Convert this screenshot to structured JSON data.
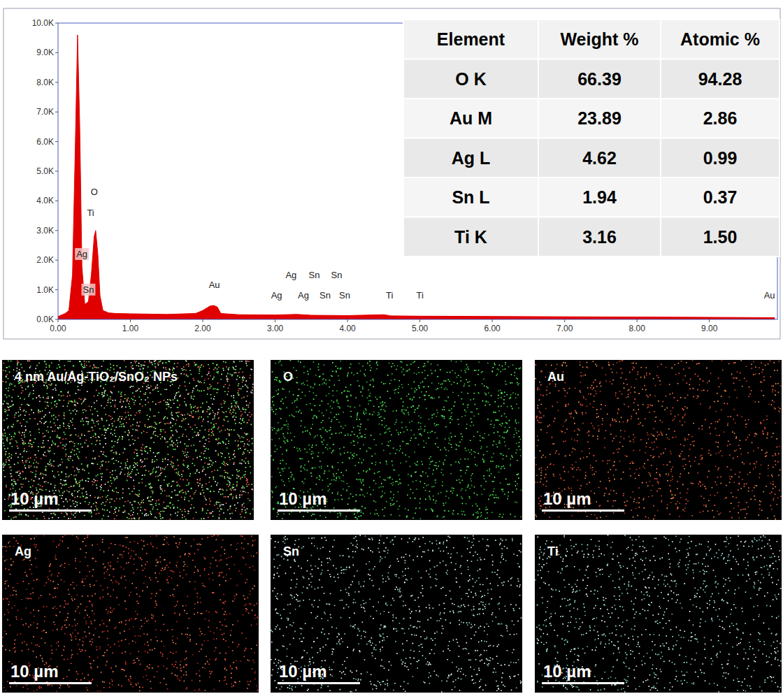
{
  "chart_data": {
    "type": "area",
    "color": "#e00000",
    "x": [
      0.0,
      0.05,
      0.1,
      0.15,
      0.2,
      0.24,
      0.27,
      0.3,
      0.33,
      0.37,
      0.42,
      0.46,
      0.5,
      0.52,
      0.55,
      0.58,
      0.62,
      0.7,
      0.8,
      1.0,
      1.5,
      1.9,
      2.0,
      2.1,
      2.15,
      2.2,
      2.25,
      2.5,
      3.0,
      3.3,
      3.5,
      4.0,
      4.5,
      4.6,
      5.0,
      6.0,
      7.0,
      8.0,
      9.0,
      9.9
    ],
    "values": [
      100,
      150,
      200,
      300,
      1500,
      6000,
      9600,
      6500,
      1800,
      500,
      600,
      1500,
      2800,
      3000,
      2200,
      800,
      300,
      220,
      200,
      190,
      170,
      200,
      300,
      450,
      470,
      420,
      200,
      160,
      150,
      170,
      140,
      130,
      160,
      120,
      110,
      100,
      90,
      80,
      70,
      60
    ],
    "xlim": [
      0,
      9.94
    ],
    "ylim": [
      0,
      10000
    ],
    "xticks": [
      {
        "value": 0,
        "label": "0.00"
      },
      {
        "value": 1,
        "label": "1.00"
      },
      {
        "value": 2,
        "label": "2.00"
      },
      {
        "value": 3,
        "label": "3.00"
      },
      {
        "value": 4,
        "label": "4.00"
      },
      {
        "value": 5,
        "label": "5.00"
      },
      {
        "value": 6,
        "label": "6.00"
      },
      {
        "value": 7,
        "label": "7.00"
      },
      {
        "value": 8,
        "label": "8.00"
      },
      {
        "value": 9,
        "label": "9.00"
      }
    ],
    "yticks": [
      {
        "value": 0,
        "label": "0.0K"
      },
      {
        "value": 1000,
        "label": "1.0K"
      },
      {
        "value": 2000,
        "label": "2.0K"
      },
      {
        "value": 3000,
        "label": "3.0K"
      },
      {
        "value": 4000,
        "label": "4.0K"
      },
      {
        "value": 5000,
        "label": "5.0K"
      },
      {
        "value": 6000,
        "label": "6.0K"
      },
      {
        "value": 7000,
        "label": "7.0K"
      },
      {
        "value": 8000,
        "label": "8.0K"
      },
      {
        "value": 9000,
        "label": "9.0K"
      },
      {
        "value": 10000,
        "label": "10.0K"
      }
    ],
    "grid": false,
    "annotations": [
      {
        "text": "O",
        "x": 0.5,
        "y": 4200
      },
      {
        "text": "Ti",
        "x": 0.45,
        "y": 3500
      },
      {
        "text": "Ag",
        "x": 0.33,
        "y": 2100
      },
      {
        "text": "Sn",
        "x": 0.42,
        "y": 900
      },
      {
        "text": "Au",
        "x": 2.16,
        "y": 1050
      },
      {
        "text": "Ag",
        "x": 3.22,
        "y": 1400
      },
      {
        "text": "Sn",
        "x": 3.54,
        "y": 1400
      },
      {
        "text": "Sn",
        "x": 3.85,
        "y": 1400
      },
      {
        "text": "Ag",
        "x": 3.02,
        "y": 700
      },
      {
        "text": "Ag",
        "x": 3.39,
        "y": 700
      },
      {
        "text": "Sn",
        "x": 3.69,
        "y": 700
      },
      {
        "text": "Sn",
        "x": 3.96,
        "y": 700
      },
      {
        "text": "Ti",
        "x": 4.58,
        "y": 700
      },
      {
        "text": "Ti",
        "x": 5.0,
        "y": 700
      },
      {
        "text": "Au",
        "x": 9.83,
        "y": 700
      }
    ]
  },
  "table": {
    "header": [
      "Element",
      "Weight %",
      "Atomic %"
    ],
    "rows": [
      [
        "O K",
        "66.39",
        "94.28"
      ],
      [
        "Au M",
        "23.89",
        "2.86"
      ],
      [
        "Ag L",
        "4.62",
        "0.99"
      ],
      [
        "Sn L",
        "1.94",
        "0.37"
      ],
      [
        "Ti K",
        "3.16",
        "1.50"
      ]
    ]
  },
  "maps": [
    {
      "title": "4 nm Au/Ag-TiO₂/SnO₂ NPs",
      "scale_label": "10 µm",
      "colors": [
        "#8cff5a",
        "#ff6a5a",
        "#ffffff",
        "#60ff60"
      ]
    },
    {
      "title": "O",
      "scale_label": "10 µm",
      "colors": [
        "#5cff5c",
        "#2fbf3a"
      ]
    },
    {
      "title": "Au",
      "scale_label": "10 µm",
      "colors": [
        "#ff9a4a",
        "#ff5a4a",
        "#c04020"
      ]
    },
    {
      "title": "Ag",
      "scale_label": "10 µm",
      "colors": [
        "#ff4a3a",
        "#ff8a5a",
        "#b02818"
      ]
    },
    {
      "title": "Sn",
      "scale_label": "10 µm",
      "colors": [
        "#d0fff4",
        "#ffffff",
        "#80c8c0"
      ]
    },
    {
      "title": "Ti",
      "scale_label": "10 µm",
      "colors": [
        "#b0fff0",
        "#ffffff",
        "#70c0b8"
      ]
    }
  ]
}
